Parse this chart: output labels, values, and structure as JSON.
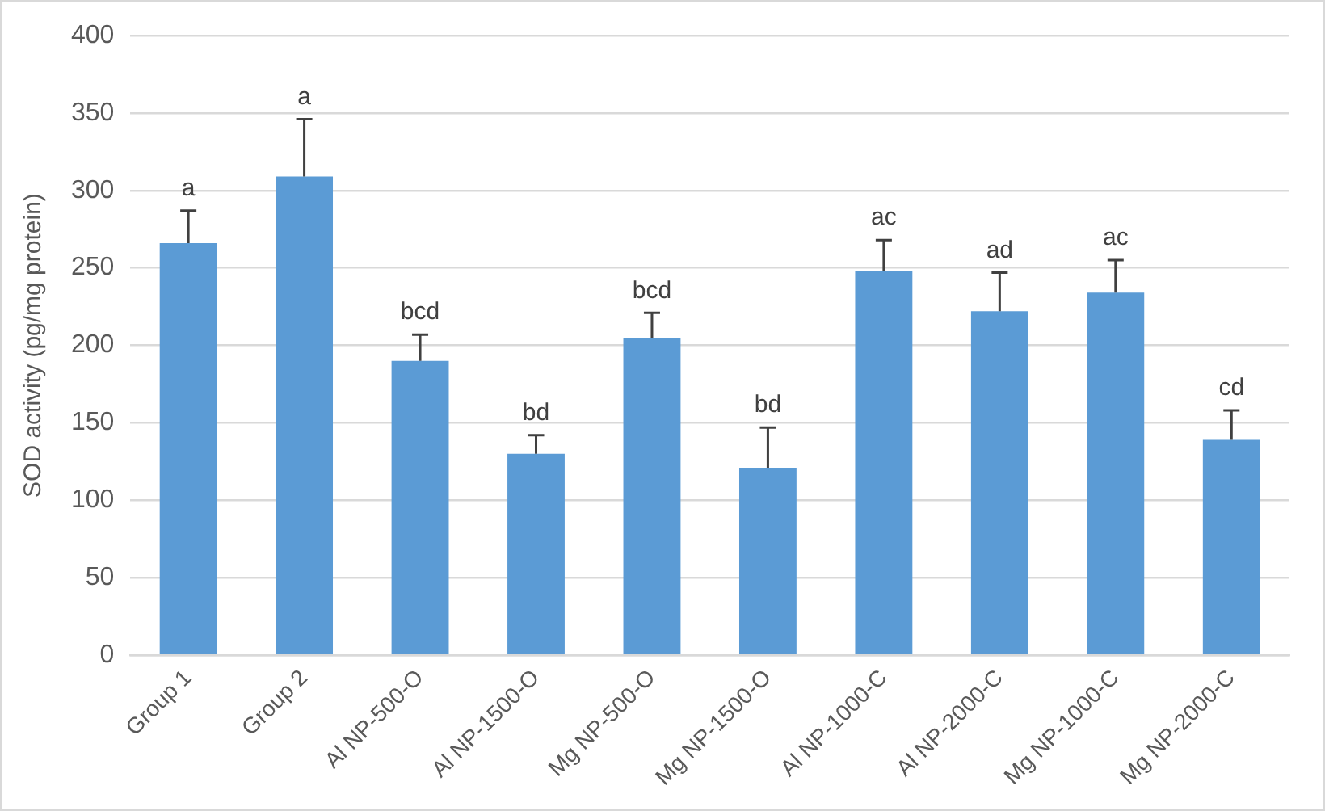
{
  "chart_data": {
    "type": "bar",
    "ylabel": "SOD activity (pg/mg protein)",
    "categories": [
      "Group 1",
      "Group 2",
      "Al NP-500-O",
      "Al NP-1500-O",
      "Mg NP-500-O",
      "Mg NP-1500-O",
      "Al NP-1000-C",
      "Al NP-2000-C",
      "Mg NP-1000-C",
      "Mg NP-2000-C"
    ],
    "values": [
      266,
      309,
      190,
      130,
      205,
      121,
      248,
      222,
      234,
      139
    ],
    "errors": [
      [
        266,
        287
      ],
      [
        309,
        346
      ],
      [
        190,
        207
      ],
      [
        130,
        142
      ],
      [
        205,
        221
      ],
      [
        121,
        147
      ],
      [
        248,
        268
      ],
      [
        222,
        247
      ],
      [
        234,
        255
      ],
      [
        139,
        158
      ]
    ],
    "color": "#5b9bd5",
    "ylim": [
      0,
      400
    ],
    "yticks": [
      0,
      50,
      100,
      150,
      200,
      250,
      300,
      350,
      400
    ],
    "grid": "y",
    "legend": false,
    "annotations": [
      {
        "text": "a",
        "x": "Group 1",
        "y": 287
      },
      {
        "text": "a",
        "x": "Group 2",
        "y": 346
      },
      {
        "text": "bcd",
        "x": "Al NP-500-O",
        "y": 207
      },
      {
        "text": "bd",
        "x": "Al NP-1500-O",
        "y": 142
      },
      {
        "text": "bcd",
        "x": "Mg NP-500-O",
        "y": 221
      },
      {
        "text": "bd",
        "x": "Mg NP-1500-O",
        "y": 147
      },
      {
        "text": "ac",
        "x": "Al NP-1000-C",
        "y": 268
      },
      {
        "text": "ad",
        "x": "Al NP-2000-C",
        "y": 247
      },
      {
        "text": "ac",
        "x": "Mg NP-1000-C",
        "y": 255
      },
      {
        "text": "cd",
        "x": "Mg NP-2000-C",
        "y": 158
      }
    ]
  }
}
